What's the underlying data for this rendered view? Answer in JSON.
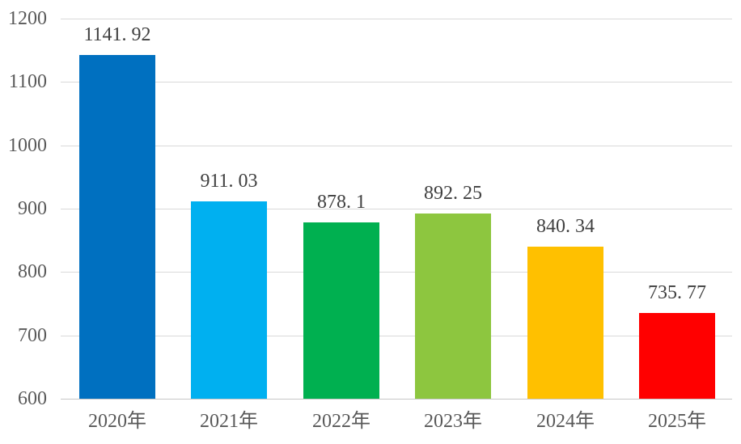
{
  "chart_data": {
    "type": "bar",
    "title": "",
    "xlabel": "",
    "ylabel": "",
    "categories": [
      "2020年",
      "2021年",
      "2022年",
      "2023年",
      "2024年",
      "2025年"
    ],
    "values": [
      1141.92,
      911.03,
      878.1,
      892.25,
      840.34,
      735.77
    ],
    "value_labels": [
      "1141. 92",
      "911. 03",
      "878. 1",
      "892. 25",
      "840. 34",
      "735. 77"
    ],
    "bar_colors": [
      "#0070C0",
      "#00B0F0",
      "#00B050",
      "#8DC63F",
      "#FFC000",
      "#FF0000"
    ],
    "yticks": [
      "1200",
      "1100",
      "1000",
      "900",
      "800",
      "700",
      "600"
    ],
    "ylim": [
      600,
      1200
    ],
    "ytick_interval": 100,
    "grid": "horizontal",
    "legend_position": "none",
    "colors": {
      "axis_text": "#595959",
      "value_label_text": "#404040",
      "gridline": "#D9D9D9",
      "axis_line": "#C6C6C6",
      "background": "#FFFFFF"
    }
  }
}
